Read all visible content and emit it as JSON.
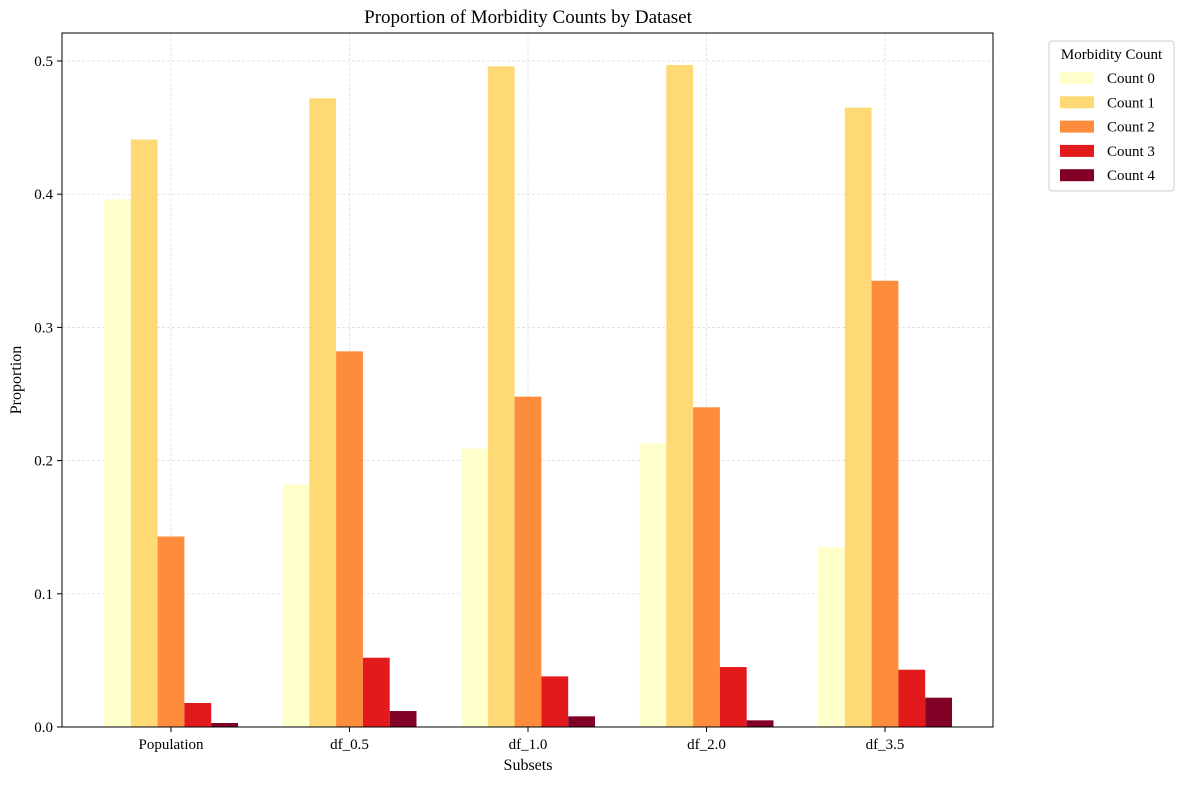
{
  "chart_data": {
    "type": "bar",
    "title": "Proportion of Morbidity Counts by Dataset",
    "xlabel": "Subsets",
    "ylabel": "Proportion",
    "categories": [
      "Population",
      "df_0.5",
      "df_1.0",
      "df_2.0",
      "df_3.5"
    ],
    "series": [
      {
        "name": "Count 0",
        "color": "#ffffcc",
        "values": [
          0.396,
          0.182,
          0.209,
          0.213,
          0.135
        ]
      },
      {
        "name": "Count 1",
        "color": "#fed976",
        "values": [
          0.441,
          0.472,
          0.496,
          0.497,
          0.465
        ]
      },
      {
        "name": "Count 2",
        "color": "#fd8d3c",
        "values": [
          0.143,
          0.282,
          0.248,
          0.24,
          0.335
        ]
      },
      {
        "name": "Count 3",
        "color": "#e31a1c",
        "values": [
          0.018,
          0.052,
          0.038,
          0.045,
          0.043
        ]
      },
      {
        "name": "Count 4",
        "color": "#800026",
        "values": [
          0.003,
          0.012,
          0.008,
          0.005,
          0.022
        ]
      }
    ],
    "ylim": [
      0,
      0.521
    ],
    "yticks": [
      "0.0",
      "0.1",
      "0.2",
      "0.3",
      "0.4",
      "0.5"
    ],
    "grid": true,
    "legend": {
      "title": "Morbidity Count",
      "placement": "outside-top-right"
    }
  }
}
